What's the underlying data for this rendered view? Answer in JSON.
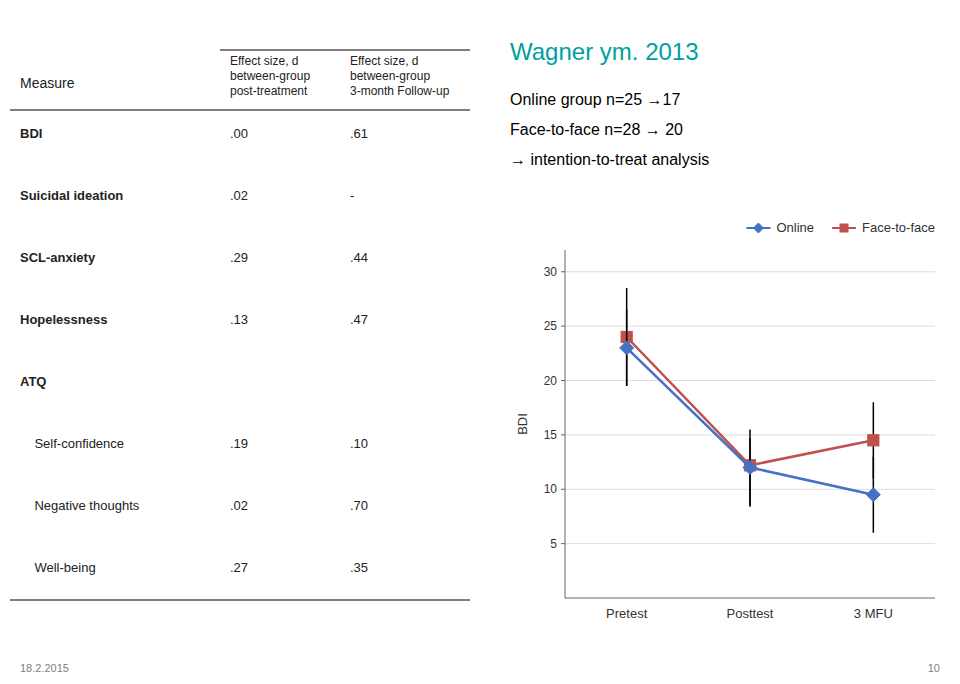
{
  "chart_data": [
    {
      "type": "table",
      "columns": [
        "Measure",
        "Effect size, d\nbetween-group\npost-treatment",
        "Effect size, d\nbetween-group\n3-month Follow-up"
      ],
      "rows": [
        [
          "BDI",
          ".00",
          ".61"
        ],
        [
          "Suicidal ideation",
          ".02",
          "-"
        ],
        [
          "SCL-anxiety",
          ".29",
          ".44"
        ],
        [
          "Hopelessness",
          ".13",
          ".47"
        ],
        [
          "ATQ",
          "",
          ""
        ],
        [
          "    Self-confidence",
          ".19",
          ".10"
        ],
        [
          "    Negative thoughts",
          ".02",
          ".70"
        ],
        [
          "    Well-being",
          ".27",
          ".35"
        ]
      ]
    },
    {
      "type": "text",
      "title": "Wagner ym. 2013",
      "color": "#00A0A0",
      "annotations": [
        "Online group n=25 →17",
        "Face-to-face n=28 → 20",
        "→ intention-to-treat analysis"
      ],
      "footer_left": "18.2.2015",
      "footer_right": "10"
    },
    {
      "type": "line",
      "categories": [
        "Pretest",
        "Posttest",
        "3 MFU"
      ],
      "ylabel": "BDI",
      "series": [
        {
          "name": "Online",
          "color": "#4472C4",
          "marker": "diamond",
          "values": [
            23.0,
            12.0,
            9.5
          ],
          "err_low": [
            3.5,
            3.5,
            3.5
          ],
          "err_high": [
            3.5,
            3.5,
            3.5
          ]
        },
        {
          "name": "Face-to-face",
          "color": "#C0504D",
          "marker": "square",
          "values": [
            24.0,
            12.2,
            14.5
          ],
          "err_low": [
            4.5,
            3.8,
            3.5
          ],
          "err_high": [
            4.5,
            2.5,
            3.5
          ]
        }
      ],
      "ylim": [
        0,
        32
      ],
      "yticks": [
        5,
        10,
        15,
        20,
        25,
        30
      ],
      "grid": true,
      "legend": "upper right"
    }
  ]
}
